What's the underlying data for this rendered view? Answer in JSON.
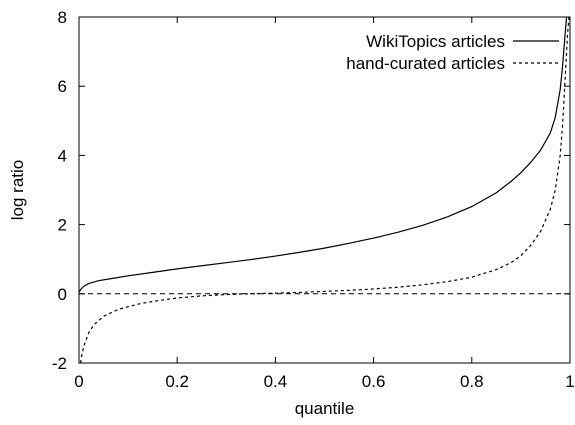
{
  "chart_data": {
    "type": "line",
    "title": "",
    "xlabel": "quantile",
    "ylabel": "log ratio",
    "xlim": [
      0,
      1
    ],
    "ylim": [
      -2,
      8
    ],
    "xticks": [
      0,
      0.2,
      0.4,
      0.6,
      0.8,
      1
    ],
    "xtick_labels": [
      "0",
      "0.2",
      "0.4",
      "0.6",
      "0.8",
      "1"
    ],
    "yticks": [
      -2,
      0,
      2,
      4,
      6,
      8
    ],
    "ytick_labels": [
      "-2",
      "0",
      "2",
      "4",
      "6",
      "8"
    ],
    "grid": false,
    "legend_position": "top-right",
    "reference_line": {
      "y": 0,
      "style": "dashed"
    },
    "series": [
      {
        "name": "WikiTopics articles",
        "style": "solid",
        "color": "#000000",
        "points": [
          [
            0,
            0.05
          ],
          [
            0.005,
            0.15
          ],
          [
            0.01,
            0.22
          ],
          [
            0.02,
            0.3
          ],
          [
            0.04,
            0.38
          ],
          [
            0.07,
            0.45
          ],
          [
            0.1,
            0.52
          ],
          [
            0.15,
            0.62
          ],
          [
            0.2,
            0.72
          ],
          [
            0.25,
            0.81
          ],
          [
            0.3,
            0.9
          ],
          [
            0.35,
            0.99
          ],
          [
            0.4,
            1.09
          ],
          [
            0.45,
            1.2
          ],
          [
            0.5,
            1.32
          ],
          [
            0.55,
            1.46
          ],
          [
            0.6,
            1.61
          ],
          [
            0.65,
            1.78
          ],
          [
            0.7,
            1.98
          ],
          [
            0.75,
            2.22
          ],
          [
            0.8,
            2.52
          ],
          [
            0.85,
            2.92
          ],
          [
            0.88,
            3.25
          ],
          [
            0.9,
            3.5
          ],
          [
            0.92,
            3.8
          ],
          [
            0.94,
            4.15
          ],
          [
            0.96,
            4.65
          ],
          [
            0.97,
            5.1
          ],
          [
            0.98,
            5.9
          ],
          [
            0.985,
            6.6
          ],
          [
            0.99,
            7.5
          ],
          [
            0.993,
            8.0
          ]
        ]
      },
      {
        "name": "hand-curated articles",
        "style": "dashed",
        "color": "#000000",
        "points": [
          [
            0.003,
            -2.0
          ],
          [
            0.006,
            -1.75
          ],
          [
            0.01,
            -1.5
          ],
          [
            0.02,
            -1.12
          ],
          [
            0.03,
            -0.9
          ],
          [
            0.05,
            -0.65
          ],
          [
            0.08,
            -0.45
          ],
          [
            0.12,
            -0.3
          ],
          [
            0.15,
            -0.22
          ],
          [
            0.2,
            -0.12
          ],
          [
            0.25,
            -0.06
          ],
          [
            0.3,
            -0.02
          ],
          [
            0.35,
            0.0
          ],
          [
            0.4,
            0.02
          ],
          [
            0.45,
            0.04
          ],
          [
            0.5,
            0.07
          ],
          [
            0.55,
            0.1
          ],
          [
            0.6,
            0.14
          ],
          [
            0.65,
            0.19
          ],
          [
            0.7,
            0.26
          ],
          [
            0.75,
            0.35
          ],
          [
            0.8,
            0.48
          ],
          [
            0.85,
            0.7
          ],
          [
            0.88,
            0.9
          ],
          [
            0.9,
            1.1
          ],
          [
            0.92,
            1.4
          ],
          [
            0.94,
            1.8
          ],
          [
            0.96,
            2.45
          ],
          [
            0.97,
            3.0
          ],
          [
            0.98,
            4.0
          ],
          [
            0.985,
            4.9
          ],
          [
            0.99,
            6.2
          ],
          [
            0.995,
            7.5
          ],
          [
            0.998,
            8.0
          ]
        ]
      }
    ]
  }
}
